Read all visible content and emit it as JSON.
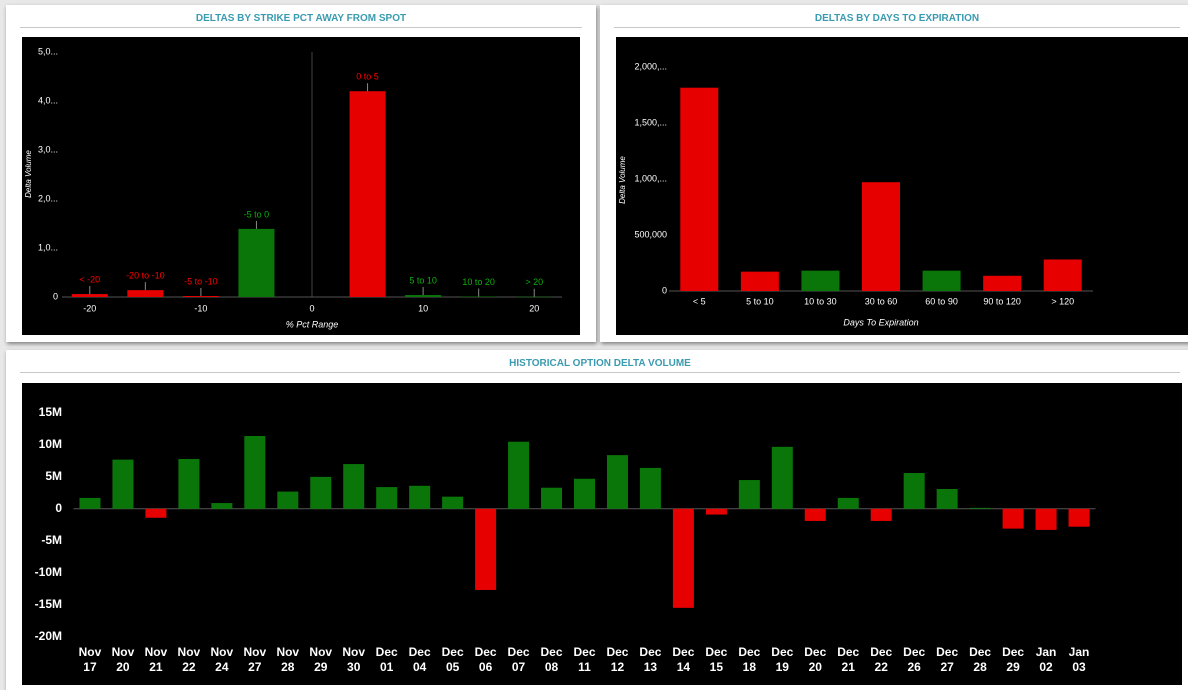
{
  "chart_data": [
    {
      "type": "bar",
      "title": "DELTAS BY STRIKE PCT AWAY FROM SPOT",
      "x_label": "% Pct Range",
      "y_label": "Delta Volume",
      "x": [
        -20,
        -15,
        -10,
        -5,
        5,
        10,
        15,
        20
      ],
      "bar_labels": [
        "< -20",
        "-20 to -10",
        "-5 to -10",
        "-5 to 0",
        "0 to 5",
        "5 to 10",
        "10 to 20",
        "> 20"
      ],
      "values": [
        60000,
        140000,
        20000,
        1390000,
        4200000,
        40000,
        10000,
        5000
      ],
      "colors": [
        "#e60000",
        "#e60000",
        "#e60000",
        "#0a760a",
        "#e60000",
        "#0a760a",
        "#0a760a",
        "#0a760a"
      ],
      "xlim": [
        -22.5,
        22.5
      ],
      "xticks": [
        -20,
        -10,
        0,
        10,
        20
      ],
      "ylim": [
        0,
        5000000
      ],
      "yticks": [
        0,
        {
          "value": 1000000,
          "label": "1,0..."
        },
        {
          "value": 2000000,
          "label": "2,0..."
        },
        {
          "value": 3000000,
          "label": "3,0..."
        },
        {
          "value": 4000000,
          "label": "4,0..."
        },
        {
          "value": 5000000,
          "label": "5,0..."
        }
      ]
    },
    {
      "type": "bar",
      "title": "DELTAS BY DAYS TO EXPIRATION",
      "x_label": "Days To Expiration",
      "y_label": "Delta Volume",
      "categories": [
        "< 5",
        "5 to 10",
        "10 to 30",
        "30 to 60",
        "60 to 90",
        "90 to 120",
        "> 120"
      ],
      "values": [
        1818000,
        173000,
        182000,
        973000,
        182000,
        136000,
        282000
      ],
      "colors": [
        "#e60000",
        "#e60000",
        "#0a760a",
        "#e60000",
        "#0a760a",
        "#e60000",
        "#e60000"
      ],
      "ylim": [
        0,
        2200000
      ],
      "yticks": [
        0,
        {
          "value": 500000,
          "label": "500,000"
        },
        {
          "value": 1000000,
          "label": "1,000,..."
        },
        {
          "value": 1500000,
          "label": "1,500,..."
        },
        {
          "value": 2000000,
          "label": "2,000,..."
        }
      ]
    },
    {
      "type": "bar",
      "title": "HISTORICAL OPTION DELTA VOLUME",
      "categories": [
        "Nov 17",
        "Nov 20",
        "Nov 21",
        "Nov 22",
        "Nov 24",
        "Nov 27",
        "Nov 28",
        "Nov 29",
        "Nov 30",
        "Dec 01",
        "Dec 04",
        "Dec 05",
        "Dec 06",
        "Dec 07",
        "Dec 08",
        "Dec 11",
        "Dec 12",
        "Dec 13",
        "Dec 14",
        "Dec 15",
        "Dec 18",
        "Dec 19",
        "Dec 20",
        "Dec 21",
        "Dec 22",
        "Dec 26",
        "Dec 27",
        "Dec 28",
        "Dec 29",
        "Jan 02",
        "Jan 03"
      ],
      "values": [
        1700000,
        7700000,
        -1400000,
        7800000,
        900000,
        11400000,
        2700000,
        5000000,
        7000000,
        3400000,
        3600000,
        1900000,
        -12700000,
        10500000,
        3300000,
        4700000,
        8400000,
        6400000,
        -15500000,
        -900000,
        4500000,
        9700000,
        -1900000,
        1700000,
        -1900000,
        5600000,
        3100000,
        150000,
        -3100000,
        -3300000,
        -2800000
      ],
      "positive_color": "#0a760a",
      "negative_color": "#e60000",
      "ylim": [
        -21000000,
        19500000
      ],
      "yticks": [
        {
          "value": -20000000,
          "label": "-20M"
        },
        {
          "value": -15000000,
          "label": "-15M"
        },
        {
          "value": -10000000,
          "label": "-10M"
        },
        {
          "value": -5000000,
          "label": "-5M"
        },
        0,
        {
          "value": 5000000,
          "label": "5M"
        },
        {
          "value": 10000000,
          "label": "10M"
        },
        {
          "value": 15000000,
          "label": "15M"
        }
      ]
    }
  ]
}
